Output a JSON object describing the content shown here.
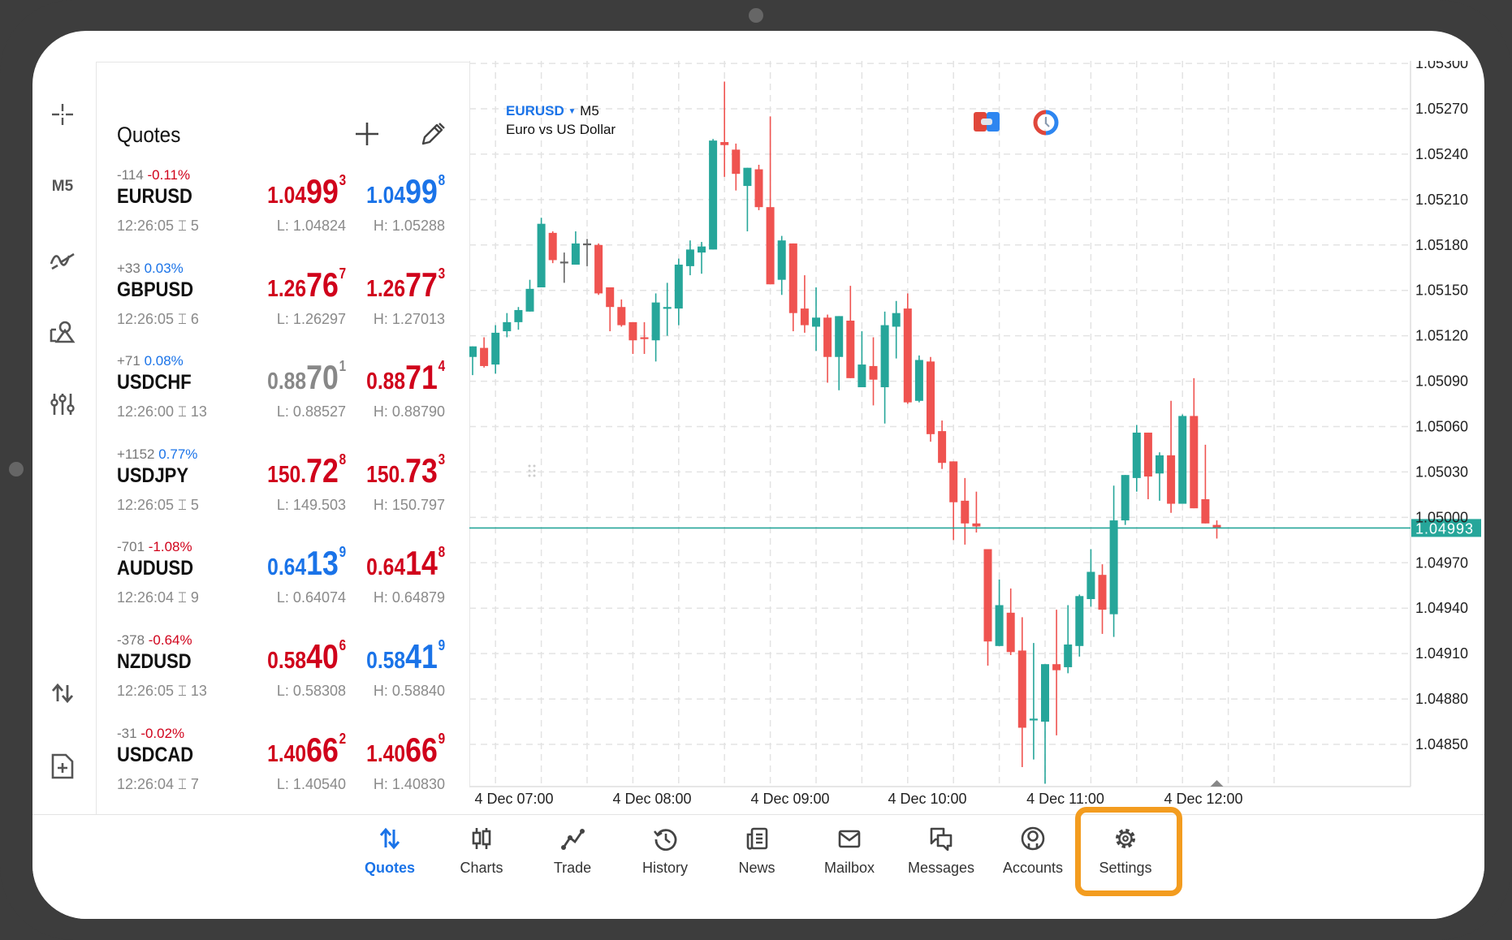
{
  "left_toolbar": {
    "items": [
      {
        "name": "crosshair-icon"
      },
      {
        "label": "M5"
      },
      {
        "name": "indicators-icon"
      },
      {
        "name": "objects-icon"
      },
      {
        "name": "settings-sliders-icon"
      },
      {
        "name": "one-click-trading-icon"
      },
      {
        "name": "new-order-icon"
      }
    ]
  },
  "quotes": {
    "title": "Quotes",
    "add_icon": "plus-icon",
    "edit_icon": "pencil-icon",
    "rows": [
      {
        "points": "-114",
        "pct": "-0.11%",
        "pct_color": "#d0021b",
        "symbol": "EURUSD",
        "time": "12:26:05",
        "spread": "5",
        "bid": {
          "pre": "1.04",
          "big": "99",
          "sup": "3",
          "color": "#d0021b"
        },
        "ask": {
          "pre": "1.04",
          "big": "99",
          "sup": "8",
          "color": "#1a73e8"
        },
        "low": "L: 1.04824",
        "high": "H: 1.05288"
      },
      {
        "points": "+33",
        "pct": "0.03%",
        "pct_color": "#1a73e8",
        "symbol": "GBPUSD",
        "time": "12:26:05",
        "spread": "6",
        "bid": {
          "pre": "1.26",
          "big": "76",
          "sup": "7",
          "color": "#d0021b"
        },
        "ask": {
          "pre": "1.26",
          "big": "77",
          "sup": "3",
          "color": "#d0021b"
        },
        "low": "L: 1.26297",
        "high": "H: 1.27013"
      },
      {
        "points": "+71",
        "pct": "0.08%",
        "pct_color": "#1a73e8",
        "symbol": "USDCHF",
        "time": "12:26:00",
        "spread": "13",
        "bid": {
          "pre": "0.88",
          "big": "70",
          "sup": "1",
          "color": "#888888"
        },
        "ask": {
          "pre": "0.88",
          "big": "71",
          "sup": "4",
          "color": "#d0021b"
        },
        "low": "L: 0.88527",
        "high": "H: 0.88790"
      },
      {
        "points": "+1152",
        "pct": "0.77%",
        "pct_color": "#1a73e8",
        "symbol": "USDJPY",
        "time": "12:26:05",
        "spread": "5",
        "bid": {
          "pre": "150.",
          "big": "72",
          "sup": "8",
          "color": "#d0021b"
        },
        "ask": {
          "pre": "150.",
          "big": "73",
          "sup": "3",
          "color": "#d0021b"
        },
        "low": "L: 149.503",
        "high": "H: 150.797"
      },
      {
        "points": "-701",
        "pct": "-1.08%",
        "pct_color": "#d0021b",
        "symbol": "AUDUSD",
        "time": "12:26:04",
        "spread": "9",
        "bid": {
          "pre": "0.64",
          "big": "13",
          "sup": "9",
          "color": "#1a73e8"
        },
        "ask": {
          "pre": "0.64",
          "big": "14",
          "sup": "8",
          "color": "#d0021b"
        },
        "low": "L: 0.64074",
        "high": "H: 0.64879"
      },
      {
        "points": "-378",
        "pct": "-0.64%",
        "pct_color": "#d0021b",
        "symbol": "NZDUSD",
        "time": "12:26:05",
        "spread": "13",
        "bid": {
          "pre": "0.58",
          "big": "40",
          "sup": "6",
          "color": "#d0021b"
        },
        "ask": {
          "pre": "0.58",
          "big": "41",
          "sup": "9",
          "color": "#1a73e8"
        },
        "low": "L: 0.58308",
        "high": "H: 0.58840"
      },
      {
        "points": "-31",
        "pct": "-0.02%",
        "pct_color": "#d0021b",
        "symbol": "USDCAD",
        "time": "12:26:04",
        "spread": "7",
        "bid": {
          "pre": "1.40",
          "big": "66",
          "sup": "2",
          "color": "#d0021b"
        },
        "ask": {
          "pre": "1.40",
          "big": "66",
          "sup": "9",
          "color": "#d0021b"
        },
        "low": "L: 1.40540",
        "high": "H: 1.40830"
      }
    ]
  },
  "chart": {
    "symbol": "EURUSD",
    "timeframe": "M5",
    "description": "Euro vs US Dollar",
    "current_price_label": "1.04993"
  },
  "chart_data": {
    "type": "candlestick",
    "symbol": "EURUSD",
    "timeframe": "M5",
    "up_color": "#26a69a",
    "down_color": "#ef5350",
    "current_price": 1.04993,
    "ylim": [
      1.048,
      1.053
    ],
    "grid": true,
    "y_ticks": [
      "1.05300",
      "1.05270",
      "1.05240",
      "1.05210",
      "1.05180",
      "1.05150",
      "1.05120",
      "1.05090",
      "1.05060",
      "1.05030",
      "1.05000",
      "1.04970",
      "1.04940",
      "1.04910",
      "1.04880",
      "1.04850"
    ],
    "x_ticks": [
      "4 Dec 07:00",
      "4 Dec 08:00",
      "4 Dec 09:00",
      "4 Dec 10:00",
      "4 Dec 11:00",
      "4 Dec 12:00"
    ],
    "ohlc": [
      [
        1.05106,
        1.05113,
        1.05094,
        1.05113
      ],
      [
        1.05112,
        1.05119,
        1.05099,
        1.051
      ],
      [
        1.05101,
        1.05127,
        1.05095,
        1.05122
      ],
      [
        1.05123,
        1.05135,
        1.05119,
        1.05129
      ],
      [
        1.05129,
        1.05139,
        1.05124,
        1.05137
      ],
      [
        1.05136,
        1.05157,
        1.05136,
        1.05151
      ],
      [
        1.05152,
        1.05198,
        1.05152,
        1.05194
      ],
      [
        1.05188,
        1.05189,
        1.05168,
        1.0517
      ],
      [
        1.05169,
        1.05175,
        1.05155,
        1.05169
      ],
      [
        1.05167,
        1.05189,
        1.05167,
        1.05181
      ],
      [
        1.05181,
        1.05184,
        1.05166,
        1.05181
      ],
      [
        1.0518,
        1.05181,
        1.05147,
        1.05148
      ],
      [
        1.05152,
        1.05152,
        1.05123,
        1.05139
      ],
      [
        1.05139,
        1.05144,
        1.05126,
        1.05127
      ],
      [
        1.05129,
        1.05129,
        1.05108,
        1.05117
      ],
      [
        1.05119,
        1.05129,
        1.05108,
        1.05118
      ],
      [
        1.05117,
        1.05148,
        1.05103,
        1.05142
      ],
      [
        1.05138,
        1.05155,
        1.0512,
        1.05139
      ],
      [
        1.05138,
        1.05171,
        1.05127,
        1.05167
      ],
      [
        1.05166,
        1.05183,
        1.0516,
        1.05177
      ],
      [
        1.05175,
        1.05182,
        1.05161,
        1.05179
      ],
      [
        1.05177,
        1.0525,
        1.05177,
        1.05249
      ],
      [
        1.05248,
        1.05288,
        1.05225,
        1.05246
      ],
      [
        1.05243,
        1.05247,
        1.05216,
        1.05227
      ],
      [
        1.05219,
        1.05231,
        1.05189,
        1.05231
      ],
      [
        1.0523,
        1.05233,
        1.05203,
        1.05205
      ],
      [
        1.05205,
        1.05265,
        1.05154,
        1.05154
      ],
      [
        1.05157,
        1.05186,
        1.05147,
        1.05183
      ],
      [
        1.05181,
        1.05181,
        1.05123,
        1.05135
      ],
      [
        1.05138,
        1.0516,
        1.05122,
        1.05127
      ],
      [
        1.05126,
        1.05152,
        1.0511,
        1.05132
      ],
      [
        1.05132,
        1.05134,
        1.05089,
        1.05106
      ],
      [
        1.05106,
        1.05133,
        1.05084,
        1.05133
      ],
      [
        1.0513,
        1.05153,
        1.05092,
        1.05092
      ],
      [
        1.05086,
        1.05123,
        1.05086,
        1.05101
      ],
      [
        1.051,
        1.05119,
        1.05074,
        1.05091
      ],
      [
        1.05086,
        1.05136,
        1.05062,
        1.05127
      ],
      [
        1.05126,
        1.05143,
        1.05105,
        1.05135
      ],
      [
        1.05138,
        1.05148,
        1.05075,
        1.05076
      ],
      [
        1.05077,
        1.05107,
        1.05076,
        1.05104
      ],
      [
        1.05103,
        1.05106,
        1.0505,
        1.05055
      ],
      [
        1.05057,
        1.05064,
        1.05032,
        1.05036
      ],
      [
        1.05037,
        1.05037,
        1.04985,
        1.0501
      ],
      [
        1.05011,
        1.05026,
        1.04982,
        1.04996
      ],
      [
        1.04996,
        1.05017,
        1.0499,
        1.04994
      ],
      [
        1.04979,
        1.04979,
        1.04902,
        1.04918
      ],
      [
        1.04915,
        1.04959,
        1.04915,
        1.04942
      ],
      [
        1.04937,
        1.04953,
        1.04909,
        1.04911
      ],
      [
        1.04912,
        1.04934,
        1.04835,
        1.04861
      ],
      [
        1.04866,
        1.04917,
        1.0484,
        1.04867
      ],
      [
        1.04865,
        1.04903,
        1.04824,
        1.04903
      ],
      [
        1.04903,
        1.04939,
        1.04856,
        1.04899
      ],
      [
        1.04901,
        1.04942,
        1.04897,
        1.04916
      ],
      [
        1.04915,
        1.04949,
        1.04908,
        1.04948
      ],
      [
        1.04946,
        1.04979,
        1.04941,
        1.04964
      ],
      [
        1.04962,
        1.04969,
        1.04923,
        1.04939
      ],
      [
        1.04936,
        1.05021,
        1.04921,
        1.04998
      ],
      [
        1.04998,
        1.05028,
        1.04995,
        1.05028
      ],
      [
        1.05026,
        1.05061,
        1.05017,
        1.05056
      ],
      [
        1.05056,
        1.05056,
        1.05012,
        1.05027
      ],
      [
        1.05029,
        1.05043,
        1.05011,
        1.05041
      ],
      [
        1.05041,
        1.05077,
        1.05003,
        1.05009
      ],
      [
        1.05009,
        1.05068,
        1.05009,
        1.05067
      ],
      [
        1.05067,
        1.05092,
        1.05006,
        1.05006
      ],
      [
        1.05012,
        1.05048,
        1.04996,
        1.04996
      ],
      [
        1.04995,
        1.04998,
        1.04986,
        1.04993
      ]
    ]
  },
  "bottom_nav": {
    "active_color": "#1a73e8",
    "highlight_color": "#f39c1f",
    "items": [
      {
        "label": "Quotes",
        "icon": "quotes-arrows-icon",
        "active": true
      },
      {
        "label": "Charts",
        "icon": "candlestick-chart-icon"
      },
      {
        "label": "Trade",
        "icon": "trade-line-icon"
      },
      {
        "label": "History",
        "icon": "history-clock-icon"
      },
      {
        "label": "News",
        "icon": "news-icon"
      },
      {
        "label": "Mailbox",
        "icon": "mail-envelope-icon"
      },
      {
        "label": "Messages",
        "icon": "messages-icon"
      },
      {
        "label": "Accounts",
        "icon": "account-icon"
      },
      {
        "label": "Settings",
        "icon": "settings-gear-icon",
        "highlighted": true
      }
    ]
  }
}
